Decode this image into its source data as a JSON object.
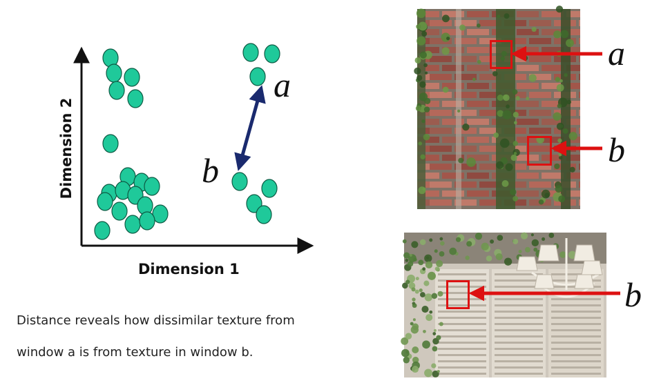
{
  "diagram": {
    "xlabel": "Dimension 1",
    "ylabel": "Dimension 2",
    "point_label_a": "a",
    "point_label_b": "b",
    "caption_line1": "Distance reveals how dissimilar texture from",
    "caption_line2": "window a is from texture in window b.",
    "colors": {
      "point_fill": "#1fc99a",
      "point_stroke": "#0d5b44",
      "distance_arrow": "#1a2a6e",
      "window_marker": "#dd1111"
    }
  },
  "photos": [
    {
      "subject": "brick wall with ivy",
      "window_labels": [
        "a",
        "b"
      ]
    },
    {
      "subject": "white shutters with ivy and chandelier",
      "window_labels": [
        "b"
      ]
    }
  ]
}
